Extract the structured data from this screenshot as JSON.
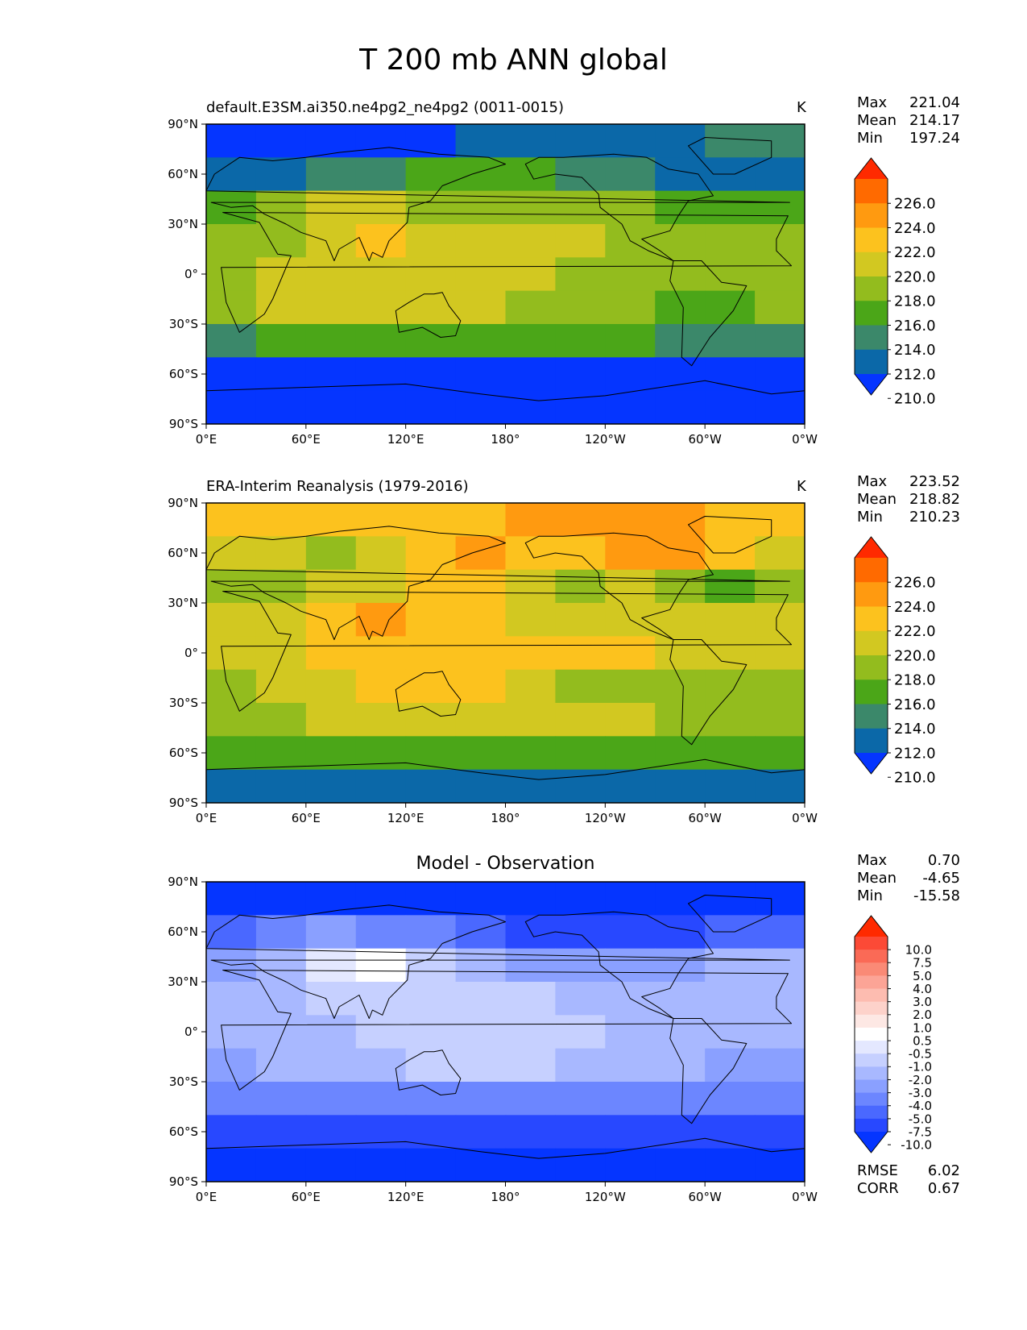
{
  "figure": {
    "title": "T 200 mb ANN global"
  },
  "chart_data": [
    {
      "type": "heatmap",
      "title": "default.E3SM.ai350.ne4pg2_ne4pg2 (0011-0015)",
      "units": "K",
      "x_ticks": [
        "0°E",
        "60°E",
        "120°E",
        "180°",
        "120°W",
        "60°W",
        "0°W"
      ],
      "y_ticks": [
        "90°N",
        "60°N",
        "30°N",
        "0°",
        "30°S",
        "60°S",
        "90°S"
      ],
      "stats": {
        "max_label": "Max",
        "max": "221.04",
        "mean_label": "Mean",
        "mean": "214.17",
        "min_label": "Min",
        "min": "197.24"
      },
      "colorbar": {
        "levels": [
          "226.0",
          "224.0",
          "222.0",
          "220.0",
          "218.0",
          "216.0",
          "214.0",
          "212.0",
          "210.0"
        ],
        "colors": [
          "#ff2a00",
          "#ff6a00",
          "#ff9a10",
          "#fcc21e",
          "#d2c821",
          "#93bc1e",
          "#4ba618",
          "#3b886a",
          "#0b68a8",
          "#0535ff"
        ]
      },
      "field": [
        [
          9,
          9,
          9,
          9,
          9,
          8,
          8,
          8,
          8,
          8,
          7,
          7
        ],
        [
          8,
          8,
          7,
          7,
          6,
          6,
          6,
          7,
          7,
          8,
          8,
          8
        ],
        [
          6,
          5,
          4,
          4,
          5,
          5,
          5,
          5,
          5,
          6,
          6,
          6
        ],
        [
          5,
          5,
          4,
          3,
          4,
          4,
          4,
          4,
          5,
          5,
          5,
          5
        ],
        [
          5,
          4,
          4,
          4,
          4,
          4,
          4,
          5,
          5,
          5,
          5,
          5
        ],
        [
          5,
          4,
          4,
          4,
          4,
          4,
          5,
          5,
          5,
          6,
          6,
          5
        ],
        [
          7,
          6,
          6,
          6,
          6,
          6,
          6,
          6,
          6,
          7,
          7,
          7
        ],
        [
          9,
          9,
          9,
          9,
          9,
          9,
          9,
          9,
          9,
          9,
          9,
          9
        ],
        [
          9,
          9,
          9,
          9,
          9,
          9,
          9,
          9,
          9,
          9,
          9,
          9
        ]
      ]
    },
    {
      "type": "heatmap",
      "title": "ERA-Interim Reanalysis (1979-2016)",
      "units": "K",
      "x_ticks": [
        "0°E",
        "60°E",
        "120°E",
        "180°",
        "120°W",
        "60°W",
        "0°W"
      ],
      "y_ticks": [
        "90°N",
        "60°N",
        "30°N",
        "0°",
        "30°S",
        "60°S",
        "90°S"
      ],
      "stats": {
        "max_label": "Max",
        "max": "223.52",
        "mean_label": "Mean",
        "mean": "218.82",
        "min_label": "Min",
        "min": "210.23"
      },
      "colorbar": {
        "levels": [
          "226.0",
          "224.0",
          "222.0",
          "220.0",
          "218.0",
          "216.0",
          "214.0",
          "212.0",
          "210.0"
        ],
        "colors": [
          "#ff2a00",
          "#ff6a00",
          "#ff9a10",
          "#fcc21e",
          "#d2c821",
          "#93bc1e",
          "#4ba618",
          "#3b886a",
          "#0b68a8",
          "#0535ff"
        ]
      },
      "field": [
        [
          3,
          3,
          3,
          3,
          3,
          3,
          2,
          2,
          2,
          2,
          3,
          3
        ],
        [
          4,
          4,
          5,
          4,
          3,
          2,
          3,
          3,
          2,
          2,
          3,
          4
        ],
        [
          5,
          5,
          4,
          4,
          3,
          3,
          4,
          5,
          4,
          5,
          6,
          5
        ],
        [
          4,
          4,
          3,
          2,
          3,
          3,
          4,
          4,
          4,
          4,
          4,
          4
        ],
        [
          4,
          4,
          3,
          3,
          3,
          3,
          3,
          3,
          3,
          4,
          4,
          4
        ],
        [
          5,
          4,
          4,
          3,
          3,
          3,
          4,
          5,
          5,
          5,
          5,
          5
        ],
        [
          5,
          5,
          4,
          4,
          4,
          4,
          4,
          4,
          4,
          5,
          5,
          5
        ],
        [
          6,
          6,
          6,
          6,
          6,
          6,
          6,
          6,
          6,
          6,
          6,
          6
        ],
        [
          8,
          8,
          8,
          8,
          8,
          8,
          8,
          8,
          8,
          8,
          8,
          8
        ]
      ]
    },
    {
      "type": "heatmap",
      "title": "Model - Observation",
      "units": "",
      "x_ticks": [
        "0°E",
        "60°E",
        "120°E",
        "180°",
        "120°W",
        "60°W",
        "0°W"
      ],
      "y_ticks": [
        "90°N",
        "60°N",
        "30°N",
        "0°",
        "30°S",
        "60°S",
        "90°S"
      ],
      "stats": {
        "max_label": "Max",
        "max": "0.70",
        "mean_label": "Mean",
        "mean": "-4.65",
        "min_label": "Min",
        "min": "-15.58"
      },
      "extra_stats": {
        "rmse_label": "RMSE",
        "rmse": "6.02",
        "corr_label": "CORR",
        "corr": "0.67"
      },
      "colorbar": {
        "levels": [
          "10.0",
          "7.5",
          "5.0",
          "4.0",
          "3.0",
          "2.0",
          "1.0",
          "0.5",
          "-0.5",
          "-1.0",
          "-2.0",
          "-3.0",
          "-4.0",
          "-5.0",
          "-7.5",
          "-10.0"
        ],
        "colors": [
          "#ff2a00",
          "#fc4a36",
          "#fa6a56",
          "#fa8a76",
          "#fca496",
          "#fdbcb0",
          "#fdd2ca",
          "#fde8e4",
          "#ffffff",
          "#e4e8ff",
          "#c6d0ff",
          "#a8b8ff",
          "#8aa0ff",
          "#6c86ff",
          "#4a68ff",
          "#2848ff",
          "#0535ff"
        ]
      },
      "field": [
        [
          16,
          16,
          16,
          16,
          16,
          16,
          16,
          16,
          16,
          16,
          16,
          16
        ],
        [
          14,
          13,
          12,
          13,
          13,
          14,
          15,
          15,
          15,
          15,
          14,
          14
        ],
        [
          12,
          11,
          9,
          8,
          10,
          11,
          12,
          12,
          12,
          12,
          11,
          11
        ],
        [
          11,
          11,
          10,
          10,
          10,
          10,
          10,
          11,
          11,
          11,
          11,
          11
        ],
        [
          11,
          11,
          11,
          10,
          10,
          10,
          10,
          10,
          11,
          11,
          11,
          11
        ],
        [
          12,
          11,
          11,
          11,
          10,
          10,
          10,
          11,
          11,
          11,
          12,
          12
        ],
        [
          13,
          13,
          13,
          13,
          13,
          13,
          13,
          13,
          13,
          13,
          13,
          13
        ],
        [
          15,
          15,
          15,
          15,
          15,
          15,
          15,
          15,
          15,
          15,
          15,
          15
        ],
        [
          16,
          16,
          16,
          16,
          16,
          16,
          16,
          16,
          16,
          16,
          16,
          16
        ]
      ]
    }
  ]
}
